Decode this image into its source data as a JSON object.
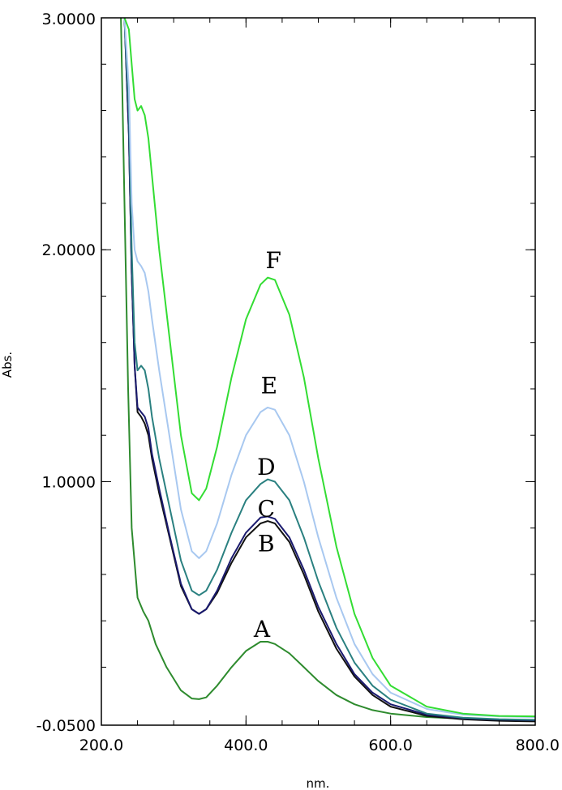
{
  "chart_data": {
    "type": "line",
    "title": "",
    "xlabel": "nm.",
    "ylabel": "Abs.",
    "xlim": [
      200.0,
      800.0
    ],
    "ylim": [
      -0.05,
      3.0
    ],
    "x_ticks": [
      "200.0",
      "400.0",
      "600.0",
      "800.0"
    ],
    "y_ticks": [
      "-0.0500",
      "1.0000",
      "2.0000",
      "3.0000"
    ],
    "x_tick_values": [
      200,
      400,
      600,
      800
    ],
    "y_tick_values": [
      -0.05,
      1.0,
      2.0,
      3.0
    ],
    "grid": false,
    "legend": "none",
    "series": [
      {
        "label": "A",
        "color": "#2e8b2e",
        "x": [
          227,
          232,
          237,
          242,
          250,
          258,
          265,
          275,
          290,
          310,
          325,
          335,
          345,
          360,
          380,
          400,
          420,
          430,
          440,
          460,
          480,
          500,
          525,
          550,
          575,
          600,
          650,
          700,
          750,
          800
        ],
        "y": [
          3.0,
          2.2,
          1.4,
          0.8,
          0.5,
          0.44,
          0.4,
          0.3,
          0.2,
          0.1,
          0.065,
          0.062,
          0.07,
          0.12,
          0.2,
          0.27,
          0.31,
          0.31,
          0.3,
          0.26,
          0.2,
          0.14,
          0.08,
          0.04,
          0.015,
          0.0,
          -0.015,
          -0.022,
          -0.026,
          -0.028
        ]
      },
      {
        "label": "B",
        "color": "#111111",
        "x": [
          232,
          238,
          242,
          246,
          250,
          255,
          260,
          265,
          270,
          280,
          295,
          310,
          325,
          335,
          345,
          360,
          380,
          400,
          420,
          430,
          440,
          460,
          480,
          500,
          525,
          550,
          575,
          600,
          650,
          700,
          750,
          800
        ],
        "y": [
          3.0,
          2.5,
          1.9,
          1.5,
          1.3,
          1.28,
          1.25,
          1.2,
          1.1,
          0.95,
          0.75,
          0.55,
          0.45,
          0.43,
          0.45,
          0.52,
          0.65,
          0.76,
          0.82,
          0.83,
          0.82,
          0.74,
          0.6,
          0.44,
          0.28,
          0.16,
          0.08,
          0.03,
          -0.01,
          -0.025,
          -0.031,
          -0.034
        ]
      },
      {
        "label": "C",
        "color": "#1a1a6e",
        "x": [
          232,
          238,
          242,
          246,
          250,
          255,
          260,
          265,
          270,
          280,
          295,
          310,
          325,
          335,
          345,
          360,
          380,
          400,
          420,
          430,
          440,
          460,
          480,
          500,
          525,
          550,
          575,
          600,
          650,
          700,
          750,
          800
        ],
        "y": [
          3.0,
          2.5,
          1.9,
          1.5,
          1.32,
          1.3,
          1.28,
          1.23,
          1.12,
          0.97,
          0.76,
          0.56,
          0.45,
          0.43,
          0.45,
          0.53,
          0.67,
          0.78,
          0.845,
          0.85,
          0.84,
          0.76,
          0.62,
          0.46,
          0.3,
          0.17,
          0.09,
          0.04,
          -0.005,
          -0.02,
          -0.026,
          -0.029
        ]
      },
      {
        "label": "D",
        "color": "#2a8080",
        "x": [
          232,
          238,
          242,
          246,
          250,
          255,
          260,
          265,
          270,
          280,
          295,
          310,
          325,
          335,
          345,
          360,
          380,
          400,
          420,
          430,
          440,
          460,
          480,
          500,
          525,
          550,
          575,
          600,
          650,
          700,
          750,
          800
        ],
        "y": [
          3.0,
          2.6,
          2.0,
          1.6,
          1.48,
          1.5,
          1.48,
          1.4,
          1.28,
          1.1,
          0.88,
          0.66,
          0.53,
          0.51,
          0.53,
          0.62,
          0.78,
          0.92,
          0.99,
          1.01,
          1.0,
          0.92,
          0.76,
          0.57,
          0.37,
          0.22,
          0.12,
          0.06,
          0.0,
          -0.018,
          -0.024,
          -0.027
        ]
      },
      {
        "label": "E",
        "color": "#a8c8f0",
        "x": [
          232,
          238,
          242,
          246,
          250,
          255,
          260,
          265,
          270,
          280,
          295,
          310,
          325,
          335,
          345,
          360,
          380,
          400,
          420,
          430,
          440,
          460,
          480,
          500,
          525,
          550,
          575,
          600,
          650,
          700,
          750,
          800
        ],
        "y": [
          3.0,
          2.7,
          2.2,
          2.0,
          1.95,
          1.93,
          1.9,
          1.82,
          1.7,
          1.48,
          1.18,
          0.88,
          0.7,
          0.67,
          0.7,
          0.82,
          1.03,
          1.2,
          1.3,
          1.32,
          1.31,
          1.2,
          1.0,
          0.76,
          0.5,
          0.3,
          0.17,
          0.09,
          0.02,
          -0.005,
          -0.012,
          -0.015
        ]
      },
      {
        "label": "F",
        "color": "#33dd33",
        "x": [
          232,
          238,
          242,
          246,
          250,
          255,
          260,
          265,
          270,
          280,
          295,
          310,
          325,
          335,
          345,
          360,
          380,
          400,
          420,
          430,
          440,
          460,
          480,
          500,
          525,
          550,
          575,
          600,
          650,
          700,
          750,
          800
        ],
        "y": [
          3.0,
          2.95,
          2.8,
          2.65,
          2.6,
          2.62,
          2.58,
          2.48,
          2.32,
          2.0,
          1.6,
          1.2,
          0.95,
          0.92,
          0.97,
          1.15,
          1.45,
          1.7,
          1.85,
          1.88,
          1.87,
          1.72,
          1.45,
          1.1,
          0.72,
          0.43,
          0.24,
          0.12,
          0.03,
          0.0,
          -0.01,
          -0.012
        ]
      }
    ],
    "annotations": [
      {
        "text": "A",
        "x": 422,
        "y": 0.33
      },
      {
        "text": "B",
        "x": 428,
        "y": 0.7
      },
      {
        "text": "C",
        "x": 428,
        "y": 0.85
      },
      {
        "text": "D",
        "x": 428,
        "y": 1.03
      },
      {
        "text": "E",
        "x": 432,
        "y": 1.38
      },
      {
        "text": "F",
        "x": 438,
        "y": 1.92
      }
    ]
  }
}
